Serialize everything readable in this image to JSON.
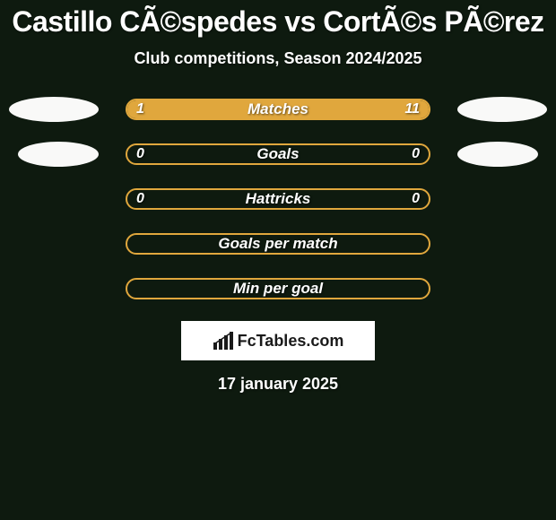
{
  "header": {
    "title": "Castillo CÃ©spedes vs CortÃ©s PÃ©rez",
    "subtitle": "Club competitions, Season 2024/2025"
  },
  "theme": {
    "bg": "#0e1a0f",
    "accent": "#e0a73d",
    "ellipse": "#f9f9f8",
    "text": "#ffffff",
    "brand_bg": "#ffffff",
    "brand_text": "#1a1a1a"
  },
  "bars": [
    {
      "label": "Matches",
      "left": "1",
      "right": "11",
      "fill_left_pct": 18,
      "fill_right_pct": 82,
      "show_ellipses": true,
      "show_values": true
    },
    {
      "label": "Goals",
      "left": "0",
      "right": "0",
      "fill_left_pct": 0,
      "fill_right_pct": 0,
      "show_ellipses": true,
      "show_values": true,
      "ellipse_shift": true
    },
    {
      "label": "Hattricks",
      "left": "0",
      "right": "0",
      "fill_left_pct": 0,
      "fill_right_pct": 0,
      "show_ellipses": false,
      "show_values": true
    },
    {
      "label": "Goals per match",
      "left": "",
      "right": "",
      "fill_left_pct": 0,
      "fill_right_pct": 0,
      "show_ellipses": false,
      "show_values": false
    },
    {
      "label": "Min per goal",
      "left": "",
      "right": "",
      "fill_left_pct": 0,
      "fill_right_pct": 0,
      "show_ellipses": false,
      "show_values": false
    }
  ],
  "brand": {
    "text": "FcTables.com"
  },
  "footer_date": "17 january 2025"
}
